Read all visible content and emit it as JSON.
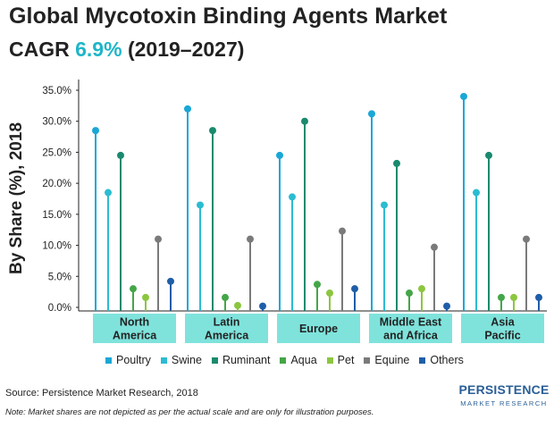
{
  "header": {
    "title": "Global Mycotoxin Binding Agents Market",
    "cagr_label": "CAGR",
    "cagr_value": "6.9%",
    "period": "(2019–2027)"
  },
  "footer": {
    "source": "Source: Persistence Market Research, 2018",
    "note": "Note: Market shares are not depicted as per the actual scale and are only for illustration purposes."
  },
  "logo": {
    "main": "PERSISTENCE",
    "sub": "MARKET RESEARCH"
  },
  "chart_data": {
    "type": "lollipop",
    "title": "Global Mycotoxin Binding Agents Market",
    "ylabel": "By Share (%), 2018",
    "xlabel": "",
    "ylim": [
      0,
      35
    ],
    "yticks": [
      "0.0%",
      "5.0%",
      "10.0%",
      "15.0%",
      "20.0%",
      "25.0%",
      "30.0%",
      "35.0%"
    ],
    "categories": [
      [
        "North",
        "America"
      ],
      [
        "Latin",
        "America"
      ],
      [
        "Europe"
      ],
      [
        "Middle East",
        "and Africa"
      ],
      [
        "Asia",
        "Pacific"
      ]
    ],
    "legend_position": "bottom",
    "grid": false,
    "series": [
      {
        "name": "Poultry",
        "color": "#1aa7d6",
        "values": [
          28.5,
          32.0,
          24.5,
          31.2,
          34.0
        ]
      },
      {
        "name": "Swine",
        "color": "#2bbcd2",
        "values": [
          18.5,
          16.5,
          17.8,
          16.5,
          18.5
        ]
      },
      {
        "name": "Ruminant",
        "color": "#1a8a6e",
        "values": [
          24.5,
          28.5,
          30.0,
          23.2,
          24.5
        ]
      },
      {
        "name": "Aqua",
        "color": "#44a648",
        "values": [
          3.0,
          1.6,
          3.7,
          2.3,
          1.6
        ]
      },
      {
        "name": "Pet",
        "color": "#8cc63f",
        "values": [
          1.6,
          0.3,
          2.3,
          3.0,
          1.6
        ]
      },
      {
        "name": "Equine",
        "color": "#7a7a7a",
        "values": [
          11.0,
          11.0,
          12.3,
          9.7,
          11.0
        ]
      },
      {
        "name": "Others",
        "color": "#1f5ea8",
        "values": [
          4.2,
          0.2,
          3.0,
          0.2,
          1.6
        ]
      }
    ]
  }
}
